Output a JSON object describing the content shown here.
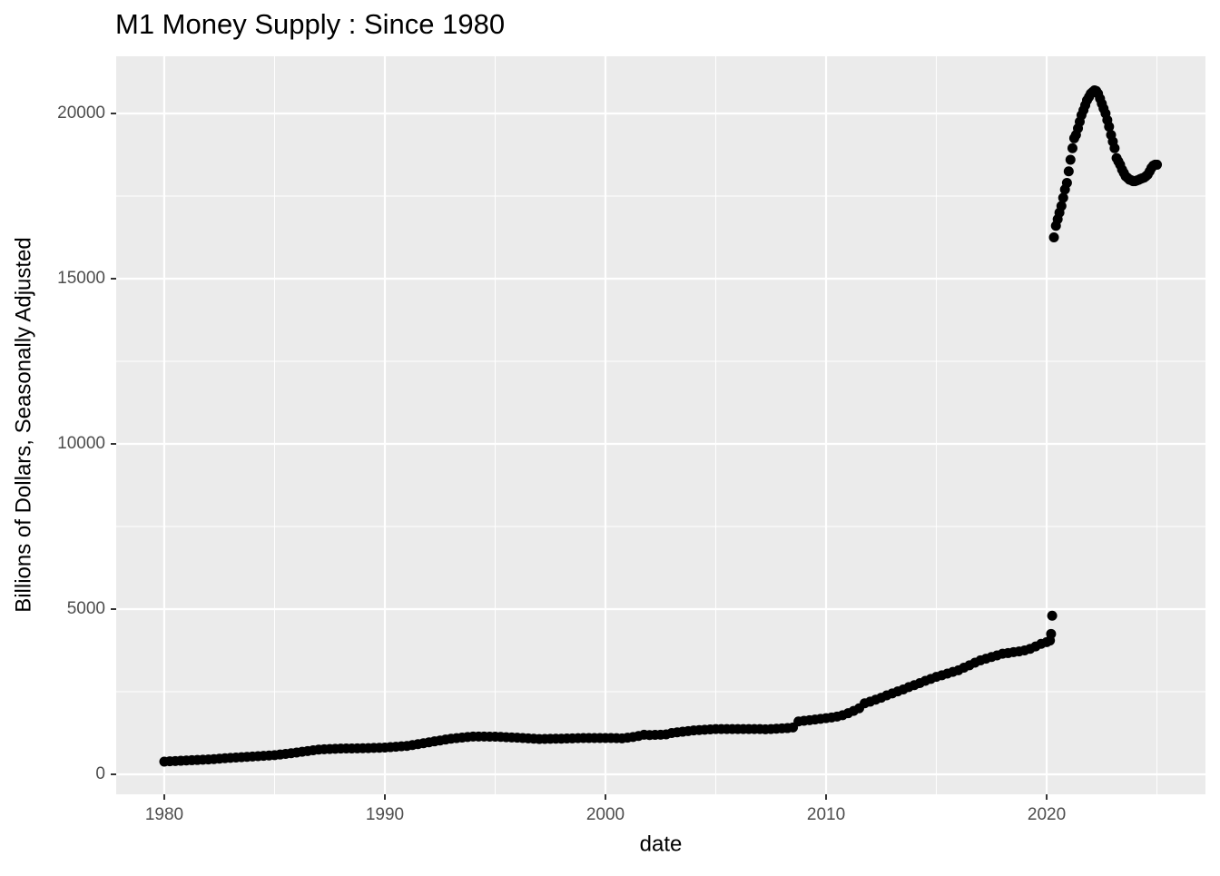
{
  "chart_data": {
    "type": "scatter",
    "title": "M1 Money Supply : Since 1980",
    "x_label": "date",
    "y_label": "Billions of Dollars, Seasonally Adjusted",
    "xlim": [
      1977.82,
      2027.2
    ],
    "ylim": [
      -604,
      21731
    ],
    "xticks": [
      1980,
      1990,
      2000,
      2010,
      2020
    ],
    "yticks": [
      0,
      5000,
      10000,
      15000,
      20000
    ],
    "x_minor_ticks": [
      1985,
      1995,
      2005,
      2015,
      2025
    ],
    "y_minor_ticks": [
      2500,
      7500,
      12500,
      17500
    ],
    "grid": true,
    "series": [
      {
        "color": "#000000",
        "x": [
          1980,
          1980.25,
          1980.5,
          1980.75,
          1981,
          1981.25,
          1981.5,
          1981.75,
          1982,
          1982.25,
          1982.5,
          1982.75,
          1983,
          1983.25,
          1983.5,
          1983.75,
          1984,
          1984.25,
          1984.5,
          1984.75,
          1985,
          1985.25,
          1985.5,
          1985.75,
          1986,
          1986.25,
          1986.5,
          1986.75,
          1987,
          1987.25,
          1987.5,
          1987.75,
          1988,
          1988.25,
          1988.5,
          1988.75,
          1989,
          1989.25,
          1989.5,
          1989.75,
          1990,
          1990.25,
          1990.5,
          1990.75,
          1991,
          1991.25,
          1991.5,
          1991.75,
          1992,
          1992.25,
          1992.5,
          1992.75,
          1993,
          1993.25,
          1993.5,
          1993.75,
          1994,
          1994.25,
          1994.5,
          1994.75,
          1995,
          1995.25,
          1995.5,
          1995.75,
          1996,
          1996.25,
          1996.5,
          1996.75,
          1997,
          1997.25,
          1997.5,
          1997.75,
          1998,
          1998.25,
          1998.5,
          1998.75,
          1999,
          1999.25,
          1999.5,
          1999.75,
          2000,
          2000.25,
          2000.5,
          2000.75,
          2001,
          2001.25,
          2001.5,
          2001.75,
          2002,
          2002.25,
          2002.5,
          2002.75,
          2003,
          2003.25,
          2003.5,
          2003.75,
          2004,
          2004.25,
          2004.5,
          2004.75,
          2005,
          2005.25,
          2005.5,
          2005.75,
          2006,
          2006.25,
          2006.5,
          2006.75,
          2007,
          2007.25,
          2007.5,
          2007.75,
          2008,
          2008.25,
          2008.5,
          2008.75,
          2009,
          2009.25,
          2009.5,
          2009.75,
          2010,
          2010.25,
          2010.5,
          2010.75,
          2011,
          2011.25,
          2011.5,
          2011.75,
          2012,
          2012.25,
          2012.5,
          2012.75,
          2013,
          2013.25,
          2013.5,
          2013.75,
          2014,
          2014.25,
          2014.5,
          2014.75,
          2015,
          2015.25,
          2015.5,
          2015.75,
          2016,
          2016.25,
          2016.5,
          2016.75,
          2017,
          2017.25,
          2017.5,
          2017.75,
          2018,
          2018.25,
          2018.5,
          2018.75,
          2019,
          2019.25,
          2019.5,
          2019.75,
          2020,
          2020.15,
          2020.2,
          2020.25,
          2020.33,
          2020.42,
          2020.5,
          2020.58,
          2020.67,
          2020.75,
          2020.83,
          2020.92,
          2021,
          2021.08,
          2021.17,
          2021.25,
          2021.33,
          2021.42,
          2021.5,
          2021.58,
          2021.67,
          2021.75,
          2021.83,
          2021.92,
          2022,
          2022.08,
          2022.17,
          2022.25,
          2022.33,
          2022.42,
          2022.5,
          2022.58,
          2022.67,
          2022.75,
          2022.83,
          2022.92,
          2023,
          2023.08,
          2023.17,
          2023.25,
          2023.33,
          2023.42,
          2023.5,
          2023.58,
          2023.67,
          2023.75,
          2023.83,
          2023.92,
          2024,
          2024.08,
          2024.17,
          2024.25,
          2024.33,
          2024.42,
          2024.5,
          2024.58,
          2024.67,
          2024.75,
          2024.83,
          2024.92,
          2025
        ],
        "values": [
          385,
          394,
          403,
          411,
          420,
          428,
          435,
          443,
          450,
          462,
          475,
          488,
          500,
          510,
          520,
          530,
          540,
          550,
          560,
          570,
          580,
          600,
          620,
          640,
          660,
          683,
          705,
          728,
          750,
          758,
          765,
          773,
          780,
          783,
          785,
          788,
          790,
          795,
          800,
          805,
          810,
          823,
          835,
          848,
          860,
          888,
          915,
          943,
          970,
          998,
          1025,
          1053,
          1080,
          1096,
          1113,
          1129,
          1145,
          1144,
          1143,
          1141,
          1140,
          1133,
          1125,
          1118,
          1110,
          1100,
          1090,
          1080,
          1070,
          1073,
          1075,
          1078,
          1080,
          1085,
          1090,
          1095,
          1100,
          1100,
          1100,
          1100,
          1100,
          1100,
          1095,
          1090,
          1110,
          1130,
          1160,
          1200,
          1190,
          1195,
          1200,
          1210,
          1250,
          1270,
          1290,
          1310,
          1330,
          1340,
          1350,
          1360,
          1370,
          1370,
          1370,
          1370,
          1370,
          1370,
          1370,
          1370,
          1370,
          1365,
          1370,
          1380,
          1390,
          1400,
          1420,
          1600,
          1620,
          1640,
          1660,
          1680,
          1700,
          1720,
          1750,
          1790,
          1850,
          1920,
          2000,
          2150,
          2200,
          2260,
          2320,
          2390,
          2450,
          2510,
          2570,
          2640,
          2700,
          2760,
          2830,
          2890,
          2950,
          3000,
          3050,
          3100,
          3150,
          3230,
          3300,
          3380,
          3450,
          3500,
          3550,
          3600,
          3650,
          3670,
          3700,
          3720,
          3750,
          3800,
          3870,
          3950,
          4000,
          4050,
          4250,
          4800,
          16250,
          16600,
          16800,
          17000,
          17200,
          17450,
          17700,
          17900,
          18250,
          18600,
          18950,
          19250,
          19350,
          19550,
          19750,
          19950,
          20100,
          20250,
          20400,
          20500,
          20600,
          20650,
          20700,
          20680,
          20600,
          20450,
          20300,
          20150,
          20000,
          19800,
          19600,
          19350,
          19150,
          18950,
          18650,
          18550,
          18450,
          18300,
          18200,
          18100,
          18050,
          18000,
          17980,
          17950,
          17950,
          17970,
          17990,
          18020,
          18040,
          18060,
          18100,
          18150,
          18250,
          18350,
          18420,
          18450,
          18450
        ]
      }
    ]
  }
}
